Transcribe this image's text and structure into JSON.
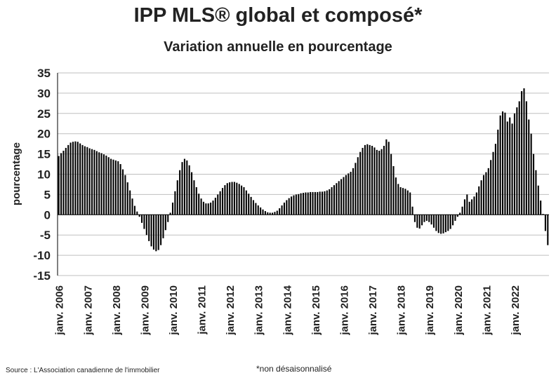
{
  "chart_data": {
    "type": "bar",
    "title": "IPP MLS® global et composé*",
    "subtitle": "Variation annuelle en pourcentage",
    "ylabel": "pourcentage",
    "ylim": [
      -15,
      35
    ],
    "yticks": [
      35,
      30,
      25,
      20,
      15,
      10,
      5,
      0,
      -5,
      -10,
      -15
    ],
    "grid": true,
    "bar_color": "#000000",
    "grid_color": "#bfbfbf",
    "x_start": "2006-01",
    "x_end": "2022-12",
    "xtick_labels": [
      "janv. 2006",
      "janv. 2007",
      "janv. 2008",
      "janv. 2009",
      "janv. 2010",
      "janv. 2011",
      "janv. 2012",
      "janv. 2013",
      "janv. 2014",
      "janv. 2015",
      "janv. 2016",
      "janv. 2017",
      "janv. 2018",
      "janv. 2019",
      "janv. 2020",
      "janv. 2021",
      "janv. 2022"
    ],
    "series": [
      {
        "values": [
          14.5,
          15.2,
          15.8,
          16.5,
          17.2,
          17.8,
          18.0,
          18.1,
          18.0,
          17.6,
          17.2,
          16.9,
          16.7,
          16.4,
          16.2,
          16.0,
          15.7,
          15.4,
          15.2,
          14.9,
          14.6,
          14.2,
          13.8,
          13.6,
          13.4,
          13.2,
          12.5,
          11.2,
          9.8,
          8.0,
          6.0,
          4.0,
          2.2,
          0.8,
          -0.5,
          -2.0,
          -3.5,
          -5.0,
          -6.5,
          -7.8,
          -8.6,
          -9.0,
          -8.7,
          -7.5,
          -5.8,
          -3.8,
          -1.8,
          0.5,
          3.0,
          5.8,
          8.5,
          11.0,
          13.0,
          13.8,
          13.4,
          12.2,
          10.5,
          8.5,
          6.8,
          5.2,
          4.0,
          3.2,
          2.8,
          2.8,
          3.0,
          3.5,
          4.2,
          5.0,
          5.8,
          6.6,
          7.3,
          7.8,
          8.0,
          8.1,
          8.1,
          7.9,
          7.6,
          7.2,
          6.8,
          6.0,
          5.2,
          4.4,
          3.6,
          2.9,
          2.3,
          1.8,
          1.3,
          0.9,
          0.6,
          0.5,
          0.5,
          0.7,
          1.0,
          1.6,
          2.3,
          3.0,
          3.6,
          4.1,
          4.5,
          4.8,
          5.0,
          5.1,
          5.3,
          5.4,
          5.5,
          5.5,
          5.6,
          5.6,
          5.6,
          5.6,
          5.7,
          5.7,
          5.8,
          6.0,
          6.3,
          6.8,
          7.3,
          7.8,
          8.3,
          8.8,
          9.3,
          9.8,
          10.2,
          10.6,
          11.5,
          12.8,
          14.2,
          15.5,
          16.5,
          17.2,
          17.4,
          17.2,
          17.0,
          16.6,
          16.0,
          15.8,
          16.2,
          17.0,
          18.6,
          18.0,
          15.0,
          12.0,
          9.2,
          7.6,
          6.8,
          6.6,
          6.4,
          6.0,
          5.5,
          2.0,
          -1.8,
          -3.2,
          -3.4,
          -2.6,
          -1.8,
          -1.5,
          -1.8,
          -2.4,
          -3.2,
          -4.0,
          -4.5,
          -4.7,
          -4.6,
          -4.3,
          -4.0,
          -3.5,
          -2.6,
          -1.5,
          -0.5,
          0.5,
          2.0,
          3.8,
          5.0,
          3.2,
          3.8,
          4.5,
          5.5,
          7.0,
          8.5,
          9.8,
          10.5,
          11.5,
          13.5,
          15.5,
          17.5,
          21.0,
          24.5,
          25.5,
          25.2,
          23.0,
          24.0,
          22.5,
          25.0,
          26.5,
          28.0,
          30.5,
          31.2,
          28.0,
          23.5,
          20.0,
          15.0,
          11.0,
          7.2,
          3.5,
          0.2,
          -4.0,
          -7.5
        ]
      }
    ]
  },
  "source": "Source : L'Association canadienne de l'immobilier",
  "footnote": "*non désaisonnalisé"
}
